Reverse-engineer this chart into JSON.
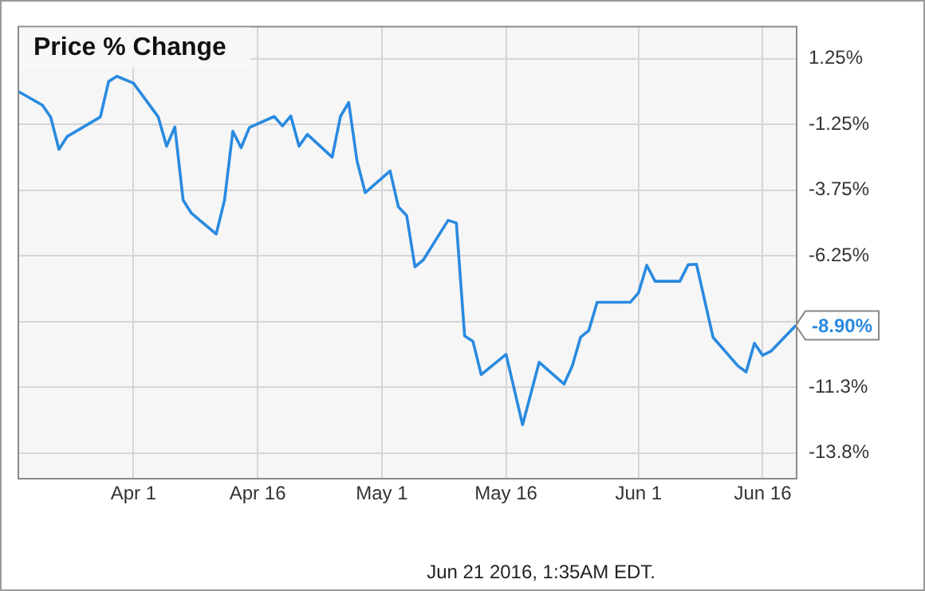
{
  "chart_data": {
    "type": "line",
    "title": "Price % Change",
    "x": [
      "2016-03-18",
      "2016-03-21",
      "2016-03-22",
      "2016-03-23",
      "2016-03-24",
      "2016-03-28",
      "2016-03-29",
      "2016-03-30",
      "2016-04-01",
      "2016-04-04",
      "2016-04-05",
      "2016-04-06",
      "2016-04-07",
      "2016-04-08",
      "2016-04-11",
      "2016-04-12",
      "2016-04-13",
      "2016-04-14",
      "2016-04-15",
      "2016-04-18",
      "2016-04-19",
      "2016-04-20",
      "2016-04-21",
      "2016-04-22",
      "2016-04-25",
      "2016-04-26",
      "2016-04-27",
      "2016-04-28",
      "2016-04-29",
      "2016-05-02",
      "2016-05-03",
      "2016-05-04",
      "2016-05-05",
      "2016-05-06",
      "2016-05-09",
      "2016-05-10",
      "2016-05-11",
      "2016-05-12",
      "2016-05-13",
      "2016-05-16",
      "2016-05-18",
      "2016-05-20",
      "2016-05-23",
      "2016-05-24",
      "2016-05-25",
      "2016-05-26",
      "2016-05-27",
      "2016-05-31",
      "2016-06-01",
      "2016-06-02",
      "2016-06-03",
      "2016-06-06",
      "2016-06-07",
      "2016-06-08",
      "2016-06-10",
      "2016-06-13",
      "2016-06-14",
      "2016-06-15",
      "2016-06-16",
      "2016-06-17",
      "2016-06-20"
    ],
    "series": [
      {
        "color": "#2a8ae0",
        "values": [
          0.02,
          -0.52,
          -0.97,
          -2.2,
          -1.71,
          -0.97,
          0.38,
          0.58,
          0.32,
          -0.97,
          -2.08,
          -1.35,
          -4.13,
          -4.63,
          -5.42,
          -4.13,
          -1.51,
          -2.14,
          -1.37,
          -0.95,
          -1.31,
          -0.93,
          -2.08,
          -1.63,
          -2.5,
          -0.95,
          -0.42,
          -2.64,
          -3.85,
          -3.02,
          -4.39,
          -4.72,
          -6.67,
          -6.41,
          -4.9,
          -5.0,
          -9.3,
          -9.5,
          -10.77,
          -10.0,
          -12.68,
          -10.3,
          -11.13,
          -10.44,
          -9.35,
          -9.09,
          -8.02,
          -8.02,
          -7.66,
          -6.61,
          -7.22,
          -7.22,
          -6.59,
          -6.57,
          -9.35,
          -10.44,
          -10.67,
          -9.58,
          -10.04,
          -9.88,
          -8.9
        ],
        "value_labels": [
          null,
          null,
          null,
          null,
          null,
          null,
          null,
          null,
          null,
          null,
          null,
          null,
          null,
          null,
          null,
          null,
          null,
          null,
          null,
          null,
          null,
          null,
          null,
          null,
          null,
          null,
          null,
          null,
          null,
          null,
          null,
          null,
          null,
          null,
          null,
          null,
          null,
          null,
          null,
          null,
          null,
          null,
          null,
          null,
          null,
          null,
          null,
          null,
          null,
          null,
          null,
          null,
          null,
          null,
          null,
          null,
          null,
          null,
          null,
          null,
          "-8.90%"
        ]
      }
    ],
    "xlim": [
      "2016-03-18",
      "2016-06-20"
    ],
    "xticks": [
      {
        "value": "2016-04-01",
        "label": "Apr 1"
      },
      {
        "value": "2016-04-16",
        "label": "Apr 16"
      },
      {
        "value": "2016-05-01",
        "label": "May 1"
      },
      {
        "value": "2016-05-16",
        "label": "May 16"
      },
      {
        "value": "2016-06-01",
        "label": "Jun 1"
      },
      {
        "value": "2016-06-16",
        "label": "Jun 16"
      }
    ],
    "ylim": [
      -14.7,
      2.5
    ],
    "yticks": [
      {
        "value": 1.25,
        "label": "1.25%"
      },
      {
        "value": -1.25,
        "label": "-1.25%"
      },
      {
        "value": -3.75,
        "label": "-3.75%"
      },
      {
        "value": -6.25,
        "label": "-6.25%"
      },
      {
        "value": -8.75,
        "label": null
      },
      {
        "value": -11.25,
        "label": "-11.3%"
      },
      {
        "value": -13.75,
        "label": "-13.8%"
      }
    ],
    "grid": true,
    "legend": false,
    "marker": "none",
    "line_style": "solid",
    "annotations": [
      "Jun 21 2016, 1:35AM EDT."
    ]
  }
}
